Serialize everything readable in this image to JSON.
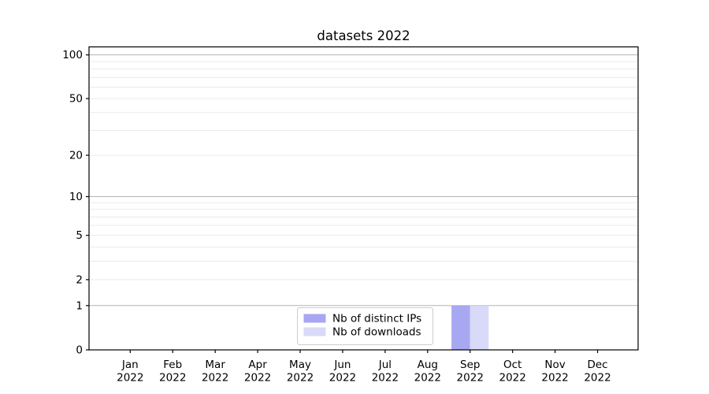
{
  "chart_data": {
    "type": "bar",
    "title": "datasets 2022",
    "categories": [
      "Jan",
      "Feb",
      "Mar",
      "Apr",
      "May",
      "Jun",
      "Jul",
      "Aug",
      "Sep",
      "Oct",
      "Nov",
      "Dec"
    ],
    "tick_year": "2022",
    "series": [
      {
        "name": "Nb of distinct IPs",
        "color": "#a7a7f2",
        "values": [
          0,
          0,
          0,
          0,
          0,
          0,
          0,
          0,
          1,
          0,
          0,
          0
        ]
      },
      {
        "name": "Nb of downloads",
        "color": "#d9d9f8",
        "values": [
          0,
          0,
          0,
          0,
          0,
          0,
          0,
          0,
          1,
          0,
          0,
          0
        ]
      }
    ],
    "xlabel": "",
    "ylabel": "",
    "yscale": "log1p",
    "ylim": [
      0,
      113.5
    ],
    "yticks": [
      0,
      1,
      2,
      5,
      10,
      20,
      50,
      100
    ],
    "grid": {
      "major_at": [
        1,
        10,
        100
      ],
      "minor_at": [
        2,
        3,
        4,
        5,
        6,
        7,
        8,
        9,
        20,
        30,
        40,
        50,
        60,
        70,
        80,
        90
      ]
    },
    "legend": {
      "position": "lower center",
      "entries": [
        "Nb of distinct IPs",
        "Nb of downloads"
      ]
    }
  },
  "colors": {
    "bar_distinct_ips": "#a7a7f2",
    "bar_downloads": "#d9d9f8",
    "grid_major": "#b4b4b4",
    "grid_minor": "#eaeaea",
    "axis": "#000000",
    "text": "#000000",
    "legend_border": "#cccccc",
    "background": "#ffffff"
  }
}
